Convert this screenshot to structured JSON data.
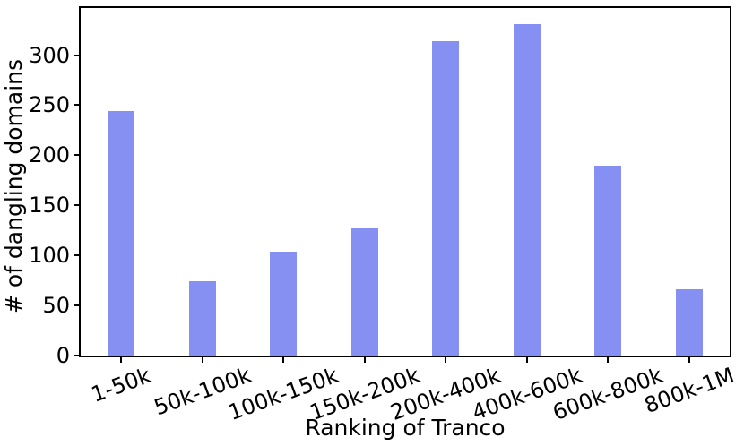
{
  "chart_data": {
    "type": "bar",
    "categories": [
      "1-50k",
      "50k-100k",
      "100k-150k",
      "150k-200k",
      "200k-400k",
      "400k-600k",
      "600k-800k",
      "800k-1M"
    ],
    "values": [
      244,
      74,
      104,
      127,
      314,
      331,
      190,
      66
    ],
    "title": "",
    "xlabel": "Ranking of Tranco",
    "ylabel": "# of dangling domains",
    "ylim": [
      0,
      347
    ],
    "yticks": [
      0,
      50,
      100,
      150,
      200,
      250,
      300
    ],
    "grid": false,
    "legend_position": "none",
    "x_tick_rotation_deg": 20,
    "bar_color": "#8690f2",
    "axis_color": "#000000",
    "background_color": "#ffffff"
  }
}
